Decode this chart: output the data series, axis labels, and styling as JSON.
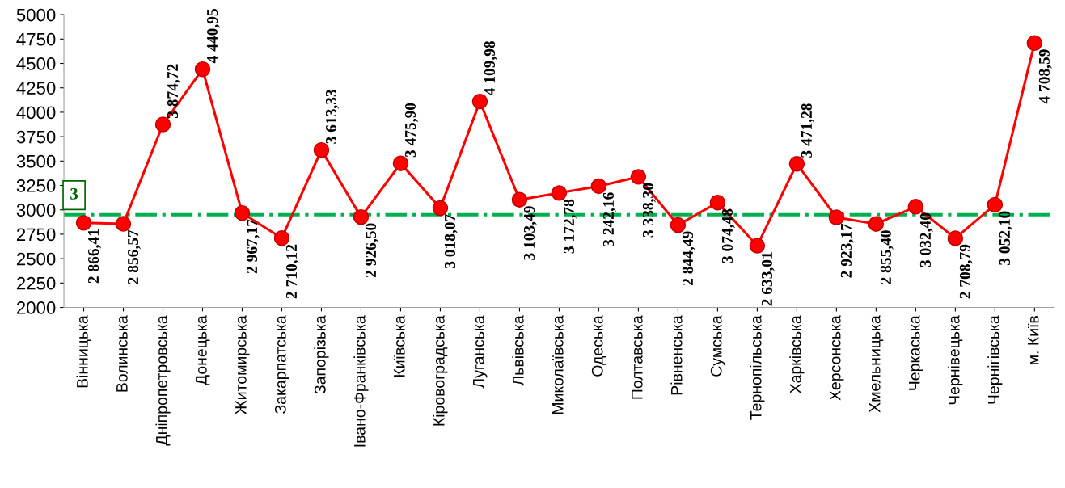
{
  "chart_data": {
    "type": "line",
    "categories": [
      "Вінницька",
      "Волинська",
      "Дніпропетровська",
      "Донецька",
      "Житомирська",
      "Закарпатська",
      "Запорізька",
      "Івано-Франківська",
      "Київська",
      "Кіровоградська",
      "Луганська",
      "Львівська",
      "Миколаївська",
      "Одеська",
      "Полтавська",
      "Рівненська",
      "Сумська",
      "Тернопільська",
      "Харківська",
      "Херсонська",
      "Хмельницька",
      "Черкаська",
      "Чернівецька",
      "Чернігівська",
      "м. Київ"
    ],
    "series": [
      {
        "color": "#ff0000",
        "values": [
          2866.41,
          2856.57,
          3874.72,
          4440.95,
          2967.17,
          2710.12,
          3613.33,
          2926.5,
          3475.9,
          3018.07,
          4109.98,
          3103.49,
          3172.78,
          3242.16,
          3338.3,
          2844.49,
          3074.48,
          2633.01,
          3471.28,
          2923.17,
          2855.4,
          3032.4,
          2708.79,
          3052.1,
          4708.59
        ],
        "value_labels": [
          "2 866,41",
          "2 856,57",
          "3 874,72",
          "4 440,95",
          "2 967,17",
          "2 710,12",
          "3 613,33",
          "2 926,50",
          "3 475,90",
          "3 018,07",
          "4 109,98",
          "3 103,49",
          "3 172,78",
          "3 242,16",
          "3 338,30",
          "2 844,49",
          "3 074,48",
          "2 633,01",
          "3 471,28",
          "2 923,17",
          "2 855,40",
          "3 032,40",
          "2 708,79",
          "3 052,10",
          "4 708,59"
        ]
      }
    ],
    "ylim": [
      2000,
      5000
    ],
    "yticks": [
      2000,
      2250,
      2500,
      2750,
      3000,
      3250,
      3500,
      3750,
      4000,
      4250,
      4500,
      4750,
      5000
    ],
    "marker": "circle",
    "line_style": "solid",
    "grid": false,
    "ref_lines": [
      {
        "axis": "y",
        "value": 2950,
        "color": "#00b050",
        "line_style": "dashdot"
      }
    ],
    "annotations": [
      "3"
    ]
  }
}
